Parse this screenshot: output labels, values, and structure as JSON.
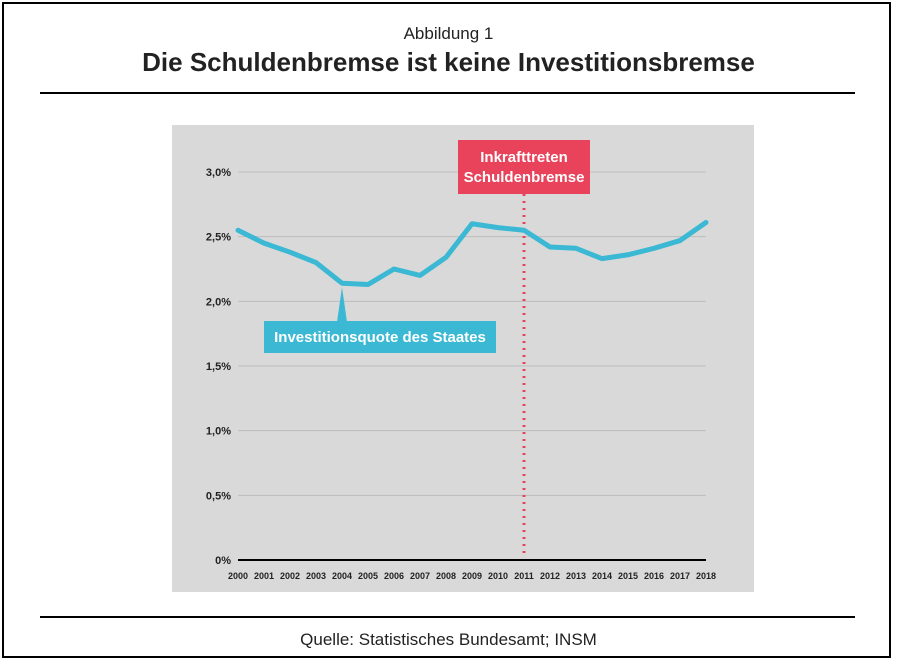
{
  "figure": {
    "caption": "Abbildung 1",
    "title": "Die Schuldenbremse ist keine Investitionsbremse",
    "source": "Quelle: Statistisches Bundesamt; INSM"
  },
  "colors": {
    "panel_bg": "#d9d9d9",
    "gridline": "#bdbdbd",
    "series": "#3bb8d3",
    "marker": "#e8435a",
    "text": "#222222"
  },
  "chart_data": {
    "type": "line",
    "x": [
      "2000",
      "2001",
      "2002",
      "2003",
      "2004",
      "2005",
      "2006",
      "2007",
      "2008",
      "2009",
      "2010",
      "2011",
      "2012",
      "2013",
      "2014",
      "2015",
      "2016",
      "2017",
      "2018"
    ],
    "series": [
      {
        "name": "Investitionsquote des Staates",
        "values": [
          2.55,
          2.45,
          2.38,
          2.3,
          2.14,
          2.13,
          2.25,
          2.2,
          2.34,
          2.6,
          2.57,
          2.55,
          2.42,
          2.41,
          2.33,
          2.36,
          2.41,
          2.47,
          2.61
        ]
      }
    ],
    "y_ticks": [
      {
        "value": 0,
        "label": "0%"
      },
      {
        "value": 0.5,
        "label": "0,5%"
      },
      {
        "value": 1.0,
        "label": "1,0%"
      },
      {
        "value": 1.5,
        "label": "1,5%"
      },
      {
        "value": 2.0,
        "label": "2,0%"
      },
      {
        "value": 2.5,
        "label": "2,5%"
      },
      {
        "value": 3.0,
        "label": "3,0%"
      }
    ],
    "ylim": [
      0,
      3.0
    ],
    "grid": true,
    "annotations": [
      {
        "type": "vline",
        "x": "2011",
        "label_lines": [
          "Inkrafttreten",
          "Schuldenbremse"
        ]
      },
      {
        "type": "callout",
        "x": "2004",
        "value": 2.14,
        "label": "Investitionsquote des Staates"
      }
    ],
    "xlabel": "",
    "ylabel": ""
  }
}
